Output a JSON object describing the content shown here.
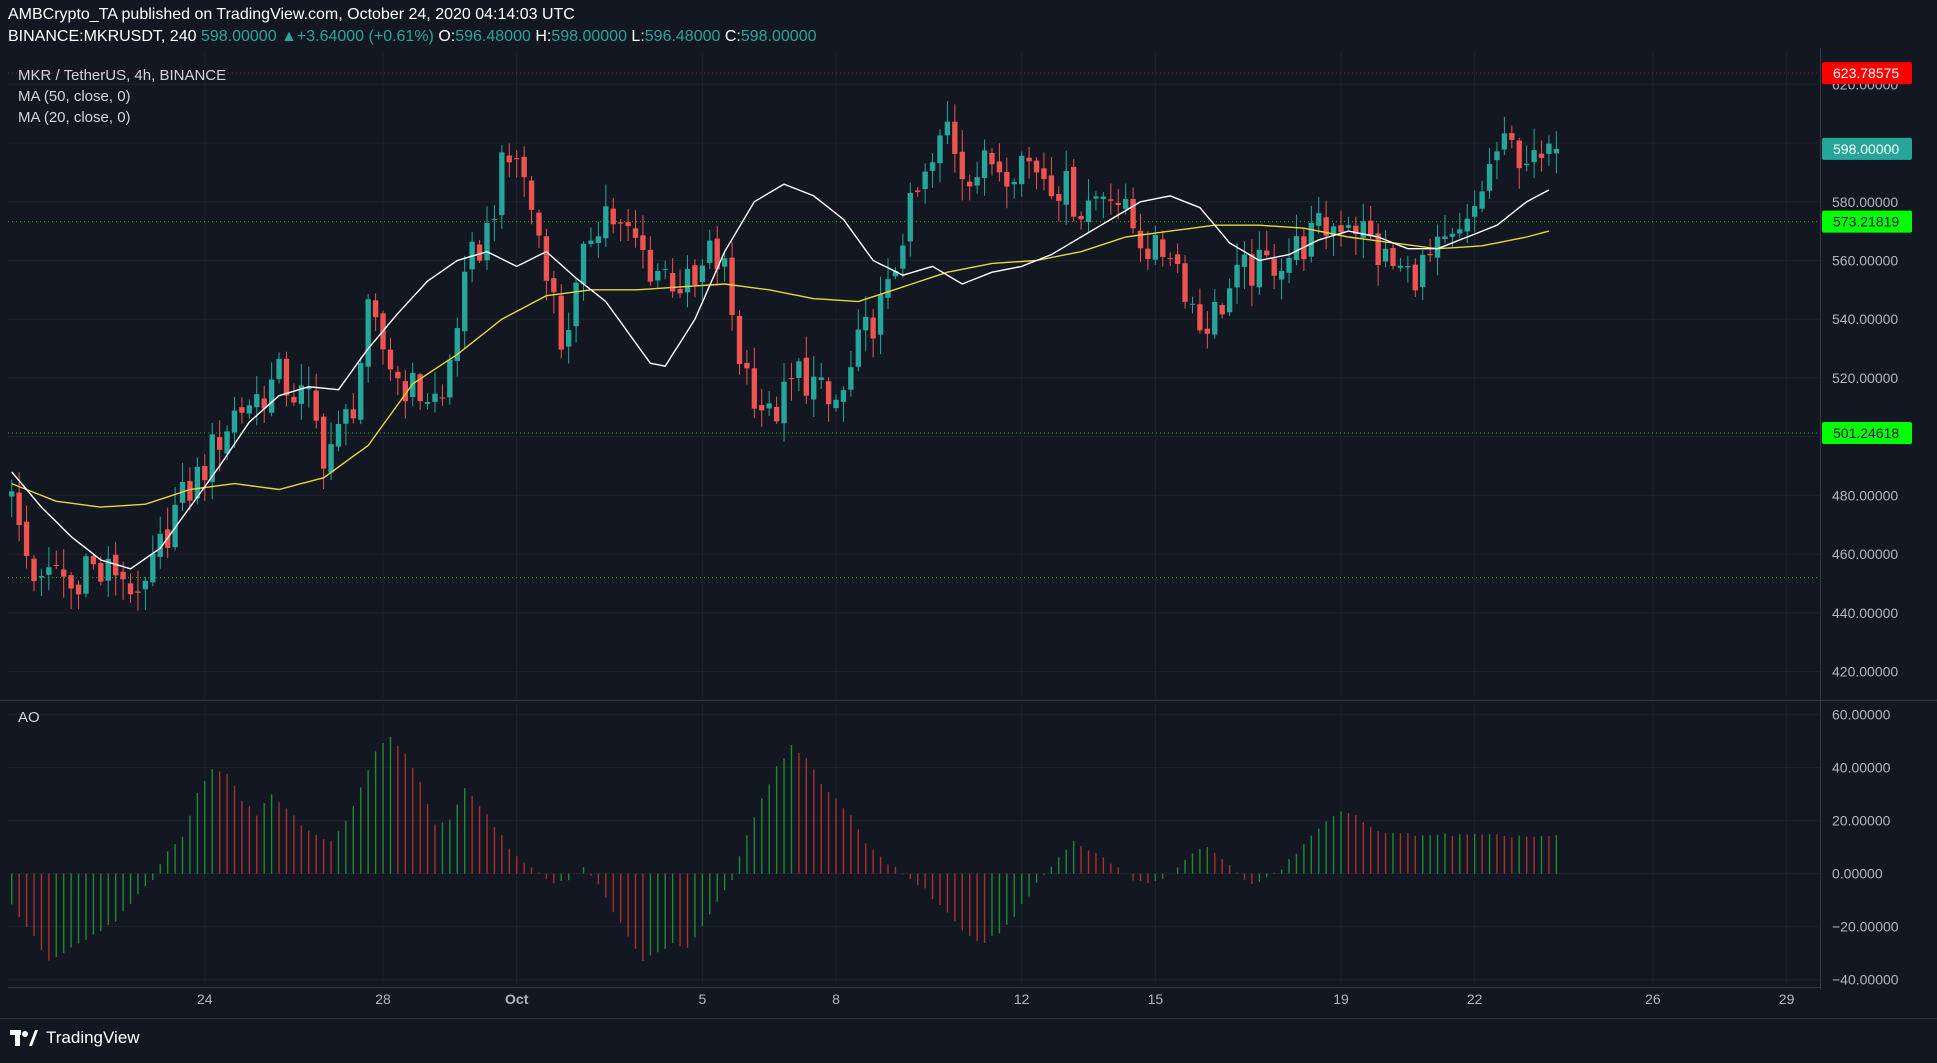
{
  "header": {
    "publisher_line": "AMBCrypto_TA published on TradingView.com, October 24, 2020 04:14:03 UTC",
    "symbol": "BINANCE:MKRUSDT, 240",
    "last": "598.00000",
    "arrow": "▲",
    "change": "+3.64000 (+0.61%)",
    "o_label": "O:",
    "o_value": "596.48000",
    "h_label": "H:",
    "h_value": "598.00000",
    "l_label": "L:",
    "l_value": "596.48000",
    "c_label": "C:",
    "c_value": "598.00000"
  },
  "legend": {
    "title": "MKR / TetherUS, 4h, BINANCE",
    "ma50": "MA (50, close, 0)",
    "ma20": "MA (20, close, 0)",
    "ao": "AO"
  },
  "footer": {
    "brand": "TradingView"
  },
  "colors": {
    "background": "#131722",
    "grid": "#1e222d",
    "up": "#26a69a",
    "down": "#ef5350",
    "ma50": "#e6d63c",
    "ma20": "#ffffff",
    "level_red": "#ff0000",
    "level_green": "#00ff00",
    "ao_up": "#1f8a33",
    "ao_down": "#a8302e"
  },
  "chart_data": [
    {
      "type": "candlestick",
      "title": "MKR / TetherUS, 4h, BINANCE",
      "ylim": [
        411,
        631
      ],
      "y_ticks": [
        420,
        440,
        460,
        480,
        500,
        520,
        540,
        560,
        580,
        600,
        620
      ],
      "y_tick_labels": [
        "420.00000",
        "440.00000",
        "460.00000",
        "480.00000",
        "500.00000",
        "520.00000",
        "540.00000",
        "560.00000",
        "580.00000",
        "600.00000",
        "620.00000"
      ],
      "x_labels": [
        {
          "label": "24",
          "bar": 26
        },
        {
          "label": "28",
          "bar": 50
        },
        {
          "label": "Oct",
          "bar": 68
        },
        {
          "label": "5",
          "bar": 93
        },
        {
          "label": "8",
          "bar": 111
        },
        {
          "label": "12",
          "bar": 136
        },
        {
          "label": "15",
          "bar": 154
        },
        {
          "label": "19",
          "bar": 179
        },
        {
          "label": "22",
          "bar": 197
        },
        {
          "label": "26",
          "bar": 221
        },
        {
          "label": "29",
          "bar": 239
        }
      ],
      "total_slots": 244,
      "price_levels": [
        {
          "value": 623.78575,
          "label": "623.78575",
          "color": "red",
          "dotted": true
        },
        {
          "value": 598.0,
          "label": "598.00000",
          "color": "teal",
          "dotted": false
        },
        {
          "value": 573.21819,
          "label": "573.21819",
          "color": "green",
          "dotted": true
        },
        {
          "value": 501.24618,
          "label": "501.24618",
          "color": "green",
          "dotted": true
        },
        {
          "value": 452.0,
          "label": "",
          "color": "green",
          "dotted": true
        }
      ],
      "close_anchors": [
        [
          0,
          478
        ],
        [
          2,
          460
        ],
        [
          4,
          448
        ],
        [
          6,
          456
        ],
        [
          8,
          448
        ],
        [
          10,
          458
        ],
        [
          12,
          452
        ],
        [
          14,
          455
        ],
        [
          16,
          450
        ],
        [
          17,
          440
        ],
        [
          18,
          448
        ],
        [
          20,
          462
        ],
        [
          22,
          475
        ],
        [
          24,
          482
        ],
        [
          26,
          490
        ],
        [
          28,
          500
        ],
        [
          30,
          508
        ],
        [
          32,
          512
        ],
        [
          34,
          515
        ],
        [
          36,
          520
        ],
        [
          38,
          515
        ],
        [
          40,
          512
        ],
        [
          42,
          495
        ],
        [
          44,
          500
        ],
        [
          46,
          512
        ],
        [
          48,
          540
        ],
        [
          50,
          530
        ],
        [
          52,
          520
        ],
        [
          54,
          516
        ],
        [
          56,
          514
        ],
        [
          58,
          512
        ],
        [
          60,
          540
        ],
        [
          62,
          560
        ],
        [
          64,
          570
        ],
        [
          66,
          590
        ],
        [
          68,
          596
        ],
        [
          70,
          578
        ],
        [
          72,
          560
        ],
        [
          74,
          532
        ],
        [
          76,
          548
        ],
        [
          78,
          570
        ],
        [
          80,
          578
        ],
        [
          82,
          570
        ],
        [
          84,
          566
        ],
        [
          86,
          558
        ],
        [
          88,
          556
        ],
        [
          90,
          552
        ],
        [
          92,
          550
        ],
        [
          94,
          562
        ],
        [
          96,
          556
        ],
        [
          98,
          528
        ],
        [
          100,
          516
        ],
        [
          102,
          506
        ],
        [
          104,
          513
        ],
        [
          106,
          522
        ],
        [
          108,
          518
        ],
        [
          110,
          510
        ],
        [
          112,
          514
        ],
        [
          114,
          530
        ],
        [
          116,
          540
        ],
        [
          118,
          548
        ],
        [
          120,
          570
        ],
        [
          122,
          582
        ],
        [
          124,
          592
        ],
        [
          126,
          606
        ],
        [
          128,
          592
        ],
        [
          130,
          590
        ],
        [
          132,
          594
        ],
        [
          134,
          592
        ],
        [
          136,
          595
        ],
        [
          138,
          592
        ],
        [
          140,
          588
        ],
        [
          142,
          584
        ],
        [
          144,
          578
        ],
        [
          146,
          582
        ],
        [
          148,
          586
        ],
        [
          150,
          575
        ],
        [
          152,
          568
        ],
        [
          154,
          562
        ],
        [
          156,
          565
        ],
        [
          158,
          552
        ],
        [
          160,
          538
        ],
        [
          162,
          542
        ],
        [
          164,
          550
        ],
        [
          166,
          556
        ],
        [
          168,
          557
        ],
        [
          170,
          560
        ],
        [
          172,
          562
        ],
        [
          174,
          566
        ],
        [
          176,
          570
        ],
        [
          178,
          572
        ],
        [
          180,
          575
        ],
        [
          182,
          570
        ],
        [
          184,
          562
        ],
        [
          186,
          558
        ],
        [
          188,
          555
        ],
        [
          190,
          558
        ],
        [
          192,
          562
        ],
        [
          194,
          565
        ],
        [
          196,
          570
        ],
        [
          198,
          585
        ],
        [
          200,
          597
        ],
        [
          202,
          598
        ],
        [
          204,
          596
        ],
        [
          205,
          592
        ],
        [
          207,
          594
        ],
        [
          208,
          598
        ]
      ],
      "series": [
        {
          "name": "MA (50, close, 0)",
          "color": "ma50",
          "anchors": [
            [
              0,
              484
            ],
            [
              6,
              478
            ],
            [
              12,
              476
            ],
            [
              18,
              477
            ],
            [
              24,
              482
            ],
            [
              30,
              484
            ],
            [
              36,
              482
            ],
            [
              42,
              486
            ],
            [
              48,
              497
            ],
            [
              54,
              518
            ],
            [
              60,
              528
            ],
            [
              66,
              540
            ],
            [
              72,
              548
            ],
            [
              78,
              550
            ],
            [
              84,
              550
            ],
            [
              90,
              551
            ],
            [
              96,
              552
            ],
            [
              102,
              550
            ],
            [
              108,
              547
            ],
            [
              114,
              546
            ],
            [
              120,
              551
            ],
            [
              126,
              556
            ],
            [
              132,
              559
            ],
            [
              138,
              560
            ],
            [
              144,
              563
            ],
            [
              150,
              568
            ],
            [
              156,
              570
            ],
            [
              162,
              572
            ],
            [
              168,
              572
            ],
            [
              174,
              571
            ],
            [
              180,
              568
            ],
            [
              186,
              566
            ],
            [
              192,
              564
            ],
            [
              198,
              565
            ],
            [
              204,
              568
            ],
            [
              207,
              570
            ]
          ]
        },
        {
          "name": "MA (20, close, 0)",
          "color": "ma20",
          "anchors": [
            [
              0,
              488
            ],
            [
              4,
              476
            ],
            [
              8,
              466
            ],
            [
              12,
              458
            ],
            [
              16,
              455
            ],
            [
              20,
              462
            ],
            [
              24,
              476
            ],
            [
              28,
              490
            ],
            [
              32,
              505
            ],
            [
              36,
              514
            ],
            [
              40,
              517
            ],
            [
              44,
              516
            ],
            [
              48,
              530
            ],
            [
              52,
              542
            ],
            [
              56,
              553
            ],
            [
              60,
              560
            ],
            [
              64,
              563
            ],
            [
              68,
              558
            ],
            [
              72,
              563
            ],
            [
              76,
              554
            ],
            [
              80,
              546
            ],
            [
              84,
              532
            ],
            [
              86,
              525
            ],
            [
              88,
              524
            ],
            [
              92,
              540
            ],
            [
              96,
              563
            ],
            [
              100,
              580
            ],
            [
              104,
              586
            ],
            [
              108,
              582
            ],
            [
              112,
              574
            ],
            [
              116,
              560
            ],
            [
              120,
              555
            ],
            [
              124,
              558
            ],
            [
              128,
              552
            ],
            [
              132,
              556
            ],
            [
              136,
              558
            ],
            [
              140,
              562
            ],
            [
              144,
              568
            ],
            [
              148,
              574
            ],
            [
              152,
              580
            ],
            [
              156,
              582
            ],
            [
              160,
              578
            ],
            [
              164,
              566
            ],
            [
              168,
              560
            ],
            [
              172,
              562
            ],
            [
              176,
              567
            ],
            [
              180,
              570
            ],
            [
              184,
              568
            ],
            [
              188,
              564
            ],
            [
              192,
              564
            ],
            [
              196,
              568
            ],
            [
              200,
              572
            ],
            [
              204,
              580
            ],
            [
              207,
              584
            ]
          ]
        }
      ]
    },
    {
      "type": "bar",
      "title": "AO",
      "ylim": [
        -42,
        64
      ],
      "y_ticks": [
        -40,
        -20,
        0,
        20,
        40,
        60
      ],
      "y_tick_labels": [
        "−40.00000",
        "−20.00000",
        "0.00000",
        "20.00000",
        "40.00000",
        "60.00000"
      ],
      "anchors": [
        [
          0,
          -12
        ],
        [
          3,
          -24
        ],
        [
          5,
          -33
        ],
        [
          7,
          -30
        ],
        [
          10,
          -25
        ],
        [
          14,
          -18
        ],
        [
          17,
          -8
        ],
        [
          19,
          -2
        ],
        [
          21,
          8
        ],
        [
          23,
          14
        ],
        [
          25,
          30
        ],
        [
          27,
          40
        ],
        [
          29,
          38
        ],
        [
          31,
          28
        ],
        [
          33,
          22
        ],
        [
          35,
          30
        ],
        [
          37,
          25
        ],
        [
          39,
          18
        ],
        [
          41,
          15
        ],
        [
          43,
          12
        ],
        [
          45,
          20
        ],
        [
          47,
          32
        ],
        [
          49,
          46
        ],
        [
          51,
          52
        ],
        [
          53,
          45
        ],
        [
          55,
          35
        ],
        [
          57,
          18
        ],
        [
          59,
          20
        ],
        [
          61,
          32
        ],
        [
          63,
          26
        ],
        [
          65,
          18
        ],
        [
          67,
          10
        ],
        [
          69,
          4
        ],
        [
          71,
          0
        ],
        [
          73,
          -4
        ],
        [
          75,
          -2
        ],
        [
          77,
          2
        ],
        [
          79,
          -4
        ],
        [
          81,
          -14
        ],
        [
          83,
          -24
        ],
        [
          85,
          -33
        ],
        [
          87,
          -30
        ],
        [
          89,
          -26
        ],
        [
          91,
          -28
        ],
        [
          93,
          -20
        ],
        [
          95,
          -10
        ],
        [
          97,
          -2
        ],
        [
          99,
          14
        ],
        [
          101,
          28
        ],
        [
          103,
          40
        ],
        [
          105,
          48
        ],
        [
          107,
          44
        ],
        [
          109,
          34
        ],
        [
          111,
          28
        ],
        [
          113,
          22
        ],
        [
          115,
          12
        ],
        [
          117,
          6
        ],
        [
          119,
          2
        ],
        [
          121,
          -2
        ],
        [
          123,
          -6
        ],
        [
          125,
          -12
        ],
        [
          127,
          -18
        ],
        [
          129,
          -24
        ],
        [
          131,
          -26
        ],
        [
          133,
          -22
        ],
        [
          135,
          -16
        ],
        [
          137,
          -8
        ],
        [
          139,
          0
        ],
        [
          141,
          6
        ],
        [
          143,
          12
        ],
        [
          145,
          9
        ],
        [
          147,
          6
        ],
        [
          149,
          2
        ],
        [
          151,
          -2
        ],
        [
          153,
          -4
        ],
        [
          155,
          -2
        ],
        [
          157,
          2
        ],
        [
          159,
          8
        ],
        [
          161,
          10
        ],
        [
          163,
          6
        ],
        [
          165,
          0
        ],
        [
          167,
          -4
        ],
        [
          169,
          -2
        ],
        [
          171,
          2
        ],
        [
          173,
          8
        ],
        [
          175,
          14
        ],
        [
          177,
          20
        ],
        [
          179,
          23
        ],
        [
          181,
          22
        ],
        [
          183,
          18
        ],
        [
          185,
          15
        ],
        [
          207,
          14
        ]
      ]
    }
  ]
}
